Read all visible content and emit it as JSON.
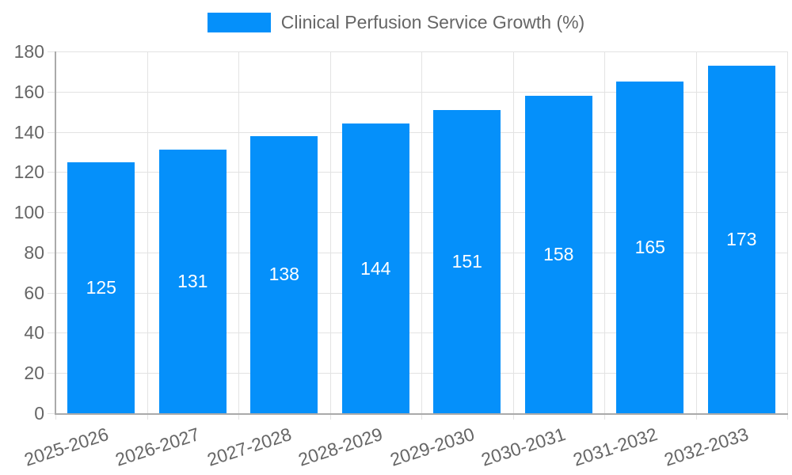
{
  "legend": {
    "label": "Clinical Perfusion Service Growth (%)"
  },
  "chart_data": {
    "type": "bar",
    "title": "Clinical Perfusion Service Growth (%)",
    "categories": [
      "2025-2026",
      "2026-2027",
      "2027-2028",
      "2028-2029",
      "2029-2030",
      "2030-2031",
      "2031-2032",
      "2032-2033"
    ],
    "values": [
      125,
      131,
      138,
      144,
      151,
      158,
      165,
      173
    ],
    "xlabel": "",
    "ylabel": "",
    "ylim": [
      0,
      180
    ],
    "ytick_step": 20,
    "ytick_labels": [
      "0",
      "20",
      "40",
      "60",
      "80",
      "100",
      "120",
      "140",
      "160",
      "180"
    ],
    "grid": true,
    "legend_position": "top",
    "value_labels_inside_bars": true,
    "colors": {
      "bar": "#0590FA",
      "value_label": "#ffffff",
      "axis_line": "#aaaaaa",
      "grid_line": "#e3e3e3",
      "tick_line": "#e3e3e3",
      "text": "#666666",
      "background": "#ffffff"
    }
  }
}
